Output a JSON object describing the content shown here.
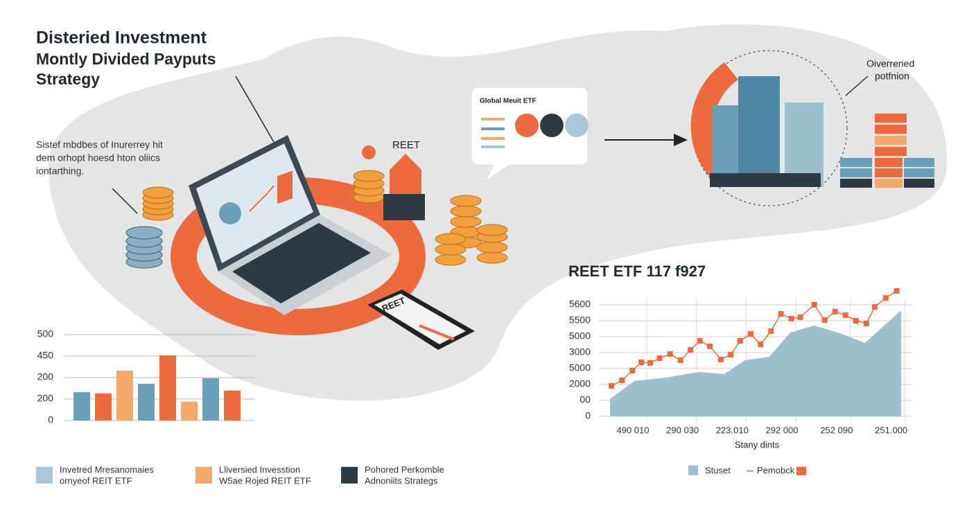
{
  "header": {
    "title_lines": [
      "Disteried Investment",
      "Montly Divided Payputs",
      "Strategy"
    ]
  },
  "note_lines": [
    "Sistef mbdbes of Inurerrey hit",
    "dem orhopt hoesd hton oliics",
    "iontarthing."
  ],
  "card": {
    "title": "Global Meuit ETF"
  },
  "house_label": "REET",
  "phone_label": "REET",
  "portfolio_label": [
    "Oiverreried",
    "potfnion"
  ],
  "legend": [
    {
      "lines": [
        "Invetred Mresanomaies",
        "ornyeof REIT ETF"
      ],
      "color": "#a9c7d6"
    },
    {
      "lines": [
        "Lliversied Invesstion",
        "W5ae Rojed REIT ETF"
      ],
      "color": "#f2a96a"
    },
    {
      "lines": [
        "Pohored Perkomble",
        "Adnoniits Strategs"
      ],
      "color": "#2b3a44"
    }
  ],
  "chart_data": [
    {
      "type": "bar",
      "categories": [
        null,
        null,
        null,
        null,
        null,
        null,
        null,
        null
      ],
      "values": [
        1.32,
        1.26,
        2.32,
        1.71,
        3.03,
        0.87,
        1.97,
        1.39
      ],
      "colors": [
        "#6a9fba",
        "#ec6a3d",
        "#f2a96a",
        "#6a9fba",
        "#ec6a3d",
        "#f2a96a",
        "#6a9fba",
        "#ec6a3d"
      ],
      "ylim": [
        0,
        4
      ],
      "yticks": [
        0,
        {
          "value": 1,
          "label": "200"
        },
        {
          "value": 2,
          "label": "200"
        },
        {
          "value": 3,
          "label": "450"
        },
        {
          "value": 4,
          "label": "500"
        }
      ],
      "grid": true
    },
    {
      "type": "line",
      "title": "REET ETF 117 f927",
      "xlabel": "Stany dints",
      "xlim": [
        0,
        60
      ],
      "ylim": [
        0,
        8
      ],
      "xticks": [
        {
          "value": 6,
          "label": "490 010"
        },
        {
          "value": 16,
          "label": "290 030"
        },
        {
          "value": 26,
          "label": "223.010"
        },
        {
          "value": 36,
          "label": "292 000"
        },
        {
          "value": 47,
          "label": "252 090"
        },
        {
          "value": 58,
          "label": "251.000"
        }
      ],
      "yticks": [
        0,
        {
          "value": 1,
          "label": "00"
        },
        {
          "value": 2,
          "label": "2000"
        },
        {
          "value": 3,
          "label": "5000"
        },
        {
          "value": 4,
          "label": "3000"
        },
        {
          "value": 5,
          "label": "5000"
        },
        {
          "value": 6,
          "label": "5500"
        },
        {
          "value": 7,
          "label": "5600"
        }
      ],
      "grid": true,
      "series": [
        {
          "name": "Stuset",
          "kind": "area",
          "color": "#9dbfce",
          "x": [
            1.4,
            6.3,
            12.6,
            16.7,
            19.5,
            24.4,
            28.6,
            33.5,
            37.7,
            42.5,
            48.1,
            52.7,
            60
          ],
          "values": [
            1.09,
            2.22,
            2.43,
            2.65,
            2.78,
            2.65,
            3.52,
            3.74,
            5.26,
            5.7,
            5.17,
            4.61,
            6.65
          ]
        },
        {
          "name": "Pemobck",
          "kind": "line",
          "color": "#ec6a3d",
          "x": [
            1.7,
            3.8,
            5.9,
            7.7,
            9.5,
            11.4,
            13.5,
            15.6,
            17.6,
            19.5,
            21.5,
            23.7,
            25.7,
            27.6,
            29.7,
            31.7,
            33.8,
            35.8,
            37.9,
            39.7,
            42.5,
            44.6,
            46.7,
            48.8,
            50.9,
            53,
            54.7,
            56.9,
            59.1
          ],
          "values": [
            1.91,
            2.26,
            2.87,
            3.39,
            3.35,
            3.65,
            3.91,
            3.52,
            4.17,
            4.74,
            4.39,
            3.57,
            3.87,
            4.74,
            5.17,
            4.52,
            5.35,
            6.43,
            6.13,
            6.22,
            7.0,
            6.04,
            6.57,
            6.35,
            6.0,
            5.83,
            6.87,
            7.43,
            7.87
          ]
        }
      ]
    }
  ]
}
